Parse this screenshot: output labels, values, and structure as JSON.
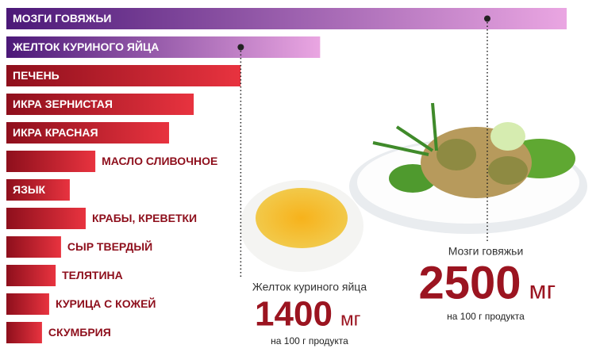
{
  "chart_data": {
    "type": "hbar",
    "categories": [
      "МОЗГИ ГОВЯЖЬИ",
      "ЖЕЛТОК КУРИНОГО ЯЙЦА",
      "ПЕЧЕНЬ",
      "ИКРА ЗЕРНИСТАЯ",
      "ИКРА КРАСНАЯ",
      "МАСЛО СЛИВОЧНОЕ",
      "ЯЗЫК",
      "КРАБЫ, КРЕВЕТКИ",
      "СЫР ТВЕРДЫЙ",
      "ТЕЛЯТИНА",
      "КУРИЦА С КОЖЕЙ",
      "СКУМБРИЯ"
    ],
    "values": [
      2500,
      1400,
      1045,
      836,
      726,
      397,
      283,
      354,
      244,
      220,
      191,
      159
    ],
    "colors": [
      "#4b1878",
      "#4b1878",
      "#8e0f1c",
      "#8e0f1c",
      "#8e0f1c",
      "#8e0f1c",
      "#8e0f1c",
      "#8e0f1c",
      "#8e0f1c",
      "#8e0f1c",
      "#8e0f1c",
      "#8e0f1c"
    ],
    "xlim": [
      0,
      2500
    ],
    "callouts": [
      {
        "label": "Мозги говяжьи",
        "unit": "мг",
        "note": "на 100 г продукта"
      },
      {
        "label": "Желток куриного яйца",
        "unit": "мг",
        "note": "на 100 г продукта"
      }
    ]
  }
}
